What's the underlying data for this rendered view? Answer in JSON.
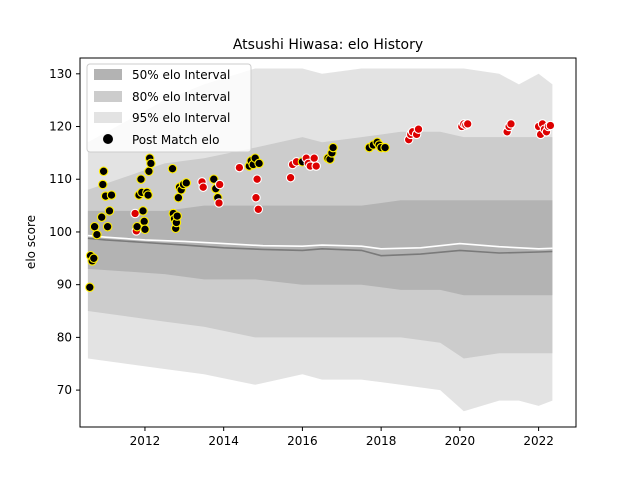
{
  "chart_data": {
    "type": "area",
    "title": "Atsushi Hiwasa: elo History",
    "xlabel": "",
    "ylabel": "elo score",
    "xlim": [
      2010.35,
      2022.95
    ],
    "ylim": [
      63,
      133
    ],
    "x_ticks": [
      2012,
      2014,
      2016,
      2018,
      2020,
      2022
    ],
    "y_ticks": [
      70,
      80,
      90,
      100,
      110,
      120,
      130
    ],
    "grid": false,
    "legend": {
      "position": "top-left",
      "entries": [
        "50% elo Interval",
        "80% elo Interval",
        "95% elo Interval",
        "Post Match elo"
      ]
    },
    "colors": {
      "band50": "#b3b3b3",
      "band80": "#cccccc",
      "band95": "#e3e3e3",
      "median_line": "#7a7a7a",
      "mean_line": "#ffffff",
      "point_loss": "#000000",
      "point_win": "#dd0000",
      "point_edge_loss": "#ffee00",
      "point_edge_win": "#ffffff"
    },
    "bands": [
      {
        "name": "95% elo Interval",
        "x": [
          2010.55,
          2012.5,
          2013.5,
          2014.8,
          2016.0,
          2016.5,
          2017.5,
          2018.5,
          2019.5,
          2020.1,
          2021.0,
          2021.5,
          2022.0,
          2022.35
        ],
        "upper": [
          117,
          125,
          128,
          131,
          131,
          130,
          131,
          131,
          131,
          131,
          130,
          128,
          130,
          128
        ],
        "lower": [
          76,
          74,
          73,
          71,
          73,
          72,
          72,
          71,
          70,
          66,
          68,
          68,
          67,
          68
        ]
      },
      {
        "name": "80% elo Interval",
        "x": [
          2010.55,
          2012.5,
          2013.5,
          2014.8,
          2016.0,
          2016.5,
          2017.5,
          2018.5,
          2019.5,
          2020.1,
          2021.0,
          2021.5,
          2022.0,
          2022.35
        ],
        "upper": [
          108,
          113,
          114,
          116,
          118,
          117,
          118,
          119,
          119,
          118,
          118,
          118,
          118,
          118
        ],
        "lower": [
          85,
          83,
          82,
          80,
          80,
          80,
          80,
          80,
          79,
          76,
          77,
          77,
          77,
          77
        ]
      },
      {
        "name": "50% elo Interval",
        "x": [
          2010.55,
          2012.5,
          2013.5,
          2014.8,
          2016.0,
          2016.5,
          2017.5,
          2018.5,
          2019.5,
          2020.1,
          2021.0,
          2021.5,
          2022.0,
          2022.35
        ],
        "upper": [
          104,
          104,
          105,
          105,
          105,
          105,
          105,
          106,
          106,
          106,
          106,
          106,
          106,
          106
        ],
        "lower": [
          93,
          92,
          91,
          91,
          90,
          90,
          90,
          89,
          89,
          88,
          88,
          88,
          88,
          88
        ]
      }
    ],
    "median_line": {
      "x": [
        2010.55,
        2011.0,
        2012.0,
        2013.0,
        2014.0,
        2015.0,
        2016.0,
        2016.5,
        2017.5,
        2018.0,
        2019.0,
        2020.0,
        2021.0,
        2022.0,
        2022.35
      ],
      "y": [
        98.8,
        98.5,
        98.0,
        97.5,
        97.0,
        96.7,
        96.5,
        96.8,
        96.5,
        95.5,
        95.8,
        96.5,
        96.0,
        96.2,
        96.3
      ]
    },
    "mean_line": {
      "x": [
        2010.55,
        2011.0,
        2012.0,
        2013.0,
        2014.0,
        2015.0,
        2016.0,
        2016.5,
        2017.5,
        2018.0,
        2019.0,
        2020.0,
        2021.0,
        2022.0,
        2022.35
      ],
      "y": [
        99.3,
        99.0,
        98.5,
        98.2,
        97.8,
        97.4,
        97.3,
        97.5,
        97.3,
        96.8,
        97.0,
        97.8,
        97.2,
        96.8,
        96.9
      ]
    },
    "series": [
      {
        "name": "Post Match elo",
        "points": [
          [
            2010.6,
            89.5,
            "loss"
          ],
          [
            2010.62,
            95.5,
            "loss"
          ],
          [
            2010.66,
            94.5,
            "loss"
          ],
          [
            2010.7,
            95.0,
            "loss"
          ],
          [
            2010.72,
            101.0,
            "loss"
          ],
          [
            2010.78,
            99.5,
            "loss"
          ],
          [
            2010.9,
            102.8,
            "loss"
          ],
          [
            2010.93,
            109.0,
            "loss"
          ],
          [
            2010.95,
            111.5,
            "loss"
          ],
          [
            2011.0,
            106.8,
            "loss"
          ],
          [
            2011.05,
            101.0,
            "loss"
          ],
          [
            2011.1,
            104.0,
            "loss"
          ],
          [
            2011.15,
            107.0,
            "loss"
          ],
          [
            2011.75,
            103.5,
            "win"
          ],
          [
            2011.78,
            100.2,
            "win"
          ],
          [
            2011.8,
            101.0,
            "loss"
          ],
          [
            2011.85,
            107.0,
            "loss"
          ],
          [
            2011.9,
            110.0,
            "loss"
          ],
          [
            2011.92,
            107.5,
            "loss"
          ],
          [
            2011.95,
            104.0,
            "loss"
          ],
          [
            2011.98,
            102.0,
            "loss"
          ],
          [
            2012.0,
            100.5,
            "loss"
          ],
          [
            2012.05,
            107.5,
            "loss"
          ],
          [
            2012.08,
            107.0,
            "loss"
          ],
          [
            2012.1,
            111.5,
            "loss"
          ],
          [
            2012.12,
            114.0,
            "loss"
          ],
          [
            2012.15,
            113.0,
            "loss"
          ],
          [
            2012.7,
            112.0,
            "loss"
          ],
          [
            2012.72,
            103.5,
            "loss"
          ],
          [
            2012.75,
            102.5,
            "loss"
          ],
          [
            2012.78,
            100.7,
            "loss"
          ],
          [
            2012.8,
            101.8,
            "loss"
          ],
          [
            2012.82,
            103.0,
            "loss"
          ],
          [
            2012.85,
            106.5,
            "loss"
          ],
          [
            2012.88,
            108.5,
            "loss"
          ],
          [
            2012.92,
            108.0,
            "loss"
          ],
          [
            2012.98,
            109.0,
            "loss"
          ],
          [
            2013.05,
            109.3,
            "loss"
          ],
          [
            2013.45,
            109.5,
            "win"
          ],
          [
            2013.48,
            108.5,
            "win"
          ],
          [
            2013.75,
            110.0,
            "loss"
          ],
          [
            2013.8,
            108.2,
            "loss"
          ],
          [
            2013.85,
            106.5,
            "loss"
          ],
          [
            2013.88,
            105.5,
            "win"
          ],
          [
            2013.9,
            109.0,
            "win"
          ],
          [
            2014.4,
            112.2,
            "win"
          ],
          [
            2014.65,
            112.5,
            "loss"
          ],
          [
            2014.7,
            113.5,
            "loss"
          ],
          [
            2014.75,
            112.8,
            "loss"
          ],
          [
            2014.8,
            114.0,
            "loss"
          ],
          [
            2014.82,
            106.5,
            "win"
          ],
          [
            2014.85,
            110.0,
            "win"
          ],
          [
            2014.88,
            104.3,
            "win"
          ],
          [
            2014.9,
            113.0,
            "loss"
          ],
          [
            2015.7,
            110.3,
            "win"
          ],
          [
            2015.75,
            112.8,
            "win"
          ],
          [
            2015.85,
            113.3,
            "win"
          ],
          [
            2016.0,
            113.3,
            "loss"
          ],
          [
            2016.1,
            114.0,
            "win"
          ],
          [
            2016.15,
            113.0,
            "win"
          ],
          [
            2016.2,
            112.5,
            "win"
          ],
          [
            2016.3,
            114.0,
            "win"
          ],
          [
            2016.35,
            112.5,
            "win"
          ],
          [
            2016.65,
            114.0,
            "loss"
          ],
          [
            2016.7,
            113.8,
            "loss"
          ],
          [
            2016.75,
            115.0,
            "loss"
          ],
          [
            2016.78,
            116.0,
            "loss"
          ],
          [
            2017.7,
            116.0,
            "loss"
          ],
          [
            2017.8,
            116.5,
            "loss"
          ],
          [
            2017.9,
            117.0,
            "loss"
          ],
          [
            2017.95,
            116.5,
            "loss"
          ],
          [
            2018.0,
            116.0,
            "loss"
          ],
          [
            2018.1,
            116.0,
            "loss"
          ],
          [
            2018.7,
            117.5,
            "win"
          ],
          [
            2018.75,
            118.5,
            "win"
          ],
          [
            2018.8,
            119.0,
            "win"
          ],
          [
            2018.9,
            118.5,
            "win"
          ],
          [
            2018.95,
            119.5,
            "win"
          ],
          [
            2020.05,
            120.0,
            "win"
          ],
          [
            2020.1,
            120.5,
            "win"
          ],
          [
            2020.15,
            120.3,
            "win"
          ],
          [
            2020.2,
            120.5,
            "win"
          ],
          [
            2021.2,
            119.0,
            "win"
          ],
          [
            2021.25,
            120.0,
            "win"
          ],
          [
            2021.3,
            120.5,
            "win"
          ],
          [
            2022.0,
            120.0,
            "win"
          ],
          [
            2022.05,
            118.5,
            "win"
          ],
          [
            2022.1,
            120.5,
            "win"
          ],
          [
            2022.15,
            119.5,
            "win"
          ],
          [
            2022.2,
            119.0,
            "win"
          ],
          [
            2022.25,
            120.0,
            "win"
          ],
          [
            2022.3,
            120.2,
            "win"
          ]
        ]
      }
    ]
  }
}
